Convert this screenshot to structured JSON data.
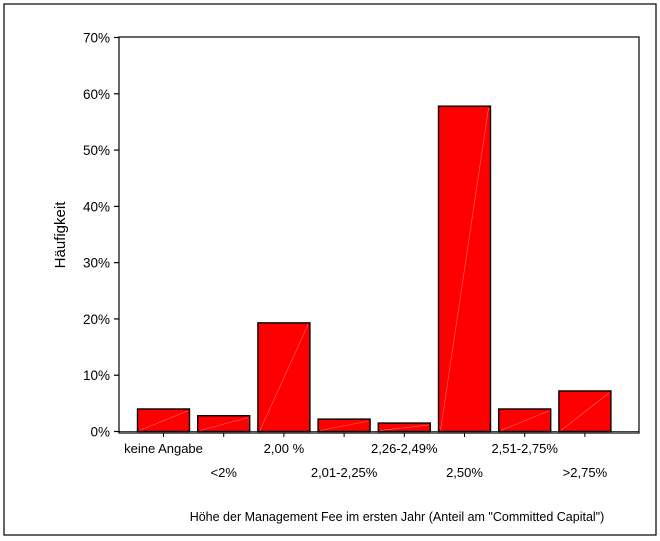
{
  "chart_data": {
    "type": "bar",
    "categories": [
      "keine Angabe",
      "<2%",
      "2,00 %",
      "2,01-2,25%",
      "2,26-2,49%",
      "2,50%",
      "2,51-2,75%",
      ">2,75%"
    ],
    "values": [
      4.0,
      2.8,
      19.3,
      2.2,
      1.5,
      57.8,
      4.0,
      7.2
    ],
    "ylim": [
      0,
      70
    ],
    "yticks": [
      "0%",
      "10%",
      "20%",
      "30%",
      "40%",
      "50%",
      "60%",
      "70%"
    ],
    "ylabel": "Häufigkeit",
    "xlabel": "Höhe der Management Fee im ersten Jahr (Anteil am \"Committed Capital\")",
    "bar_color": "#ff0000",
    "grid": false
  }
}
